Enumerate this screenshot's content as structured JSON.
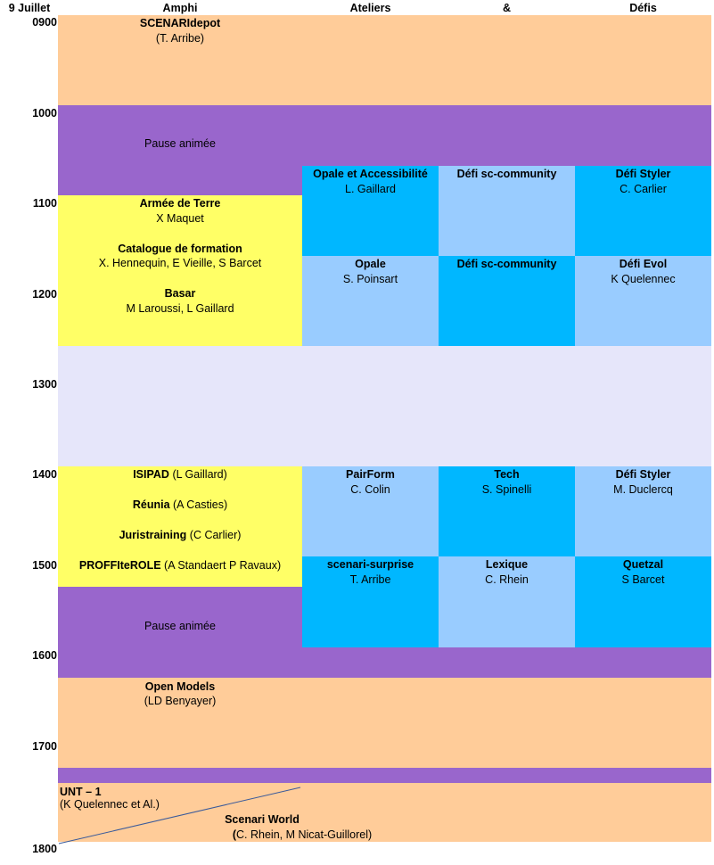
{
  "header": {
    "date": "9 Juillet",
    "col1": "Amphi",
    "col2": "Ateliers",
    "col3": "&",
    "col4": "Défis"
  },
  "times": [
    "0900",
    "1000",
    "1100",
    "1200",
    "1300",
    "1400",
    "1500",
    "1600",
    "1700",
    "1800"
  ],
  "sessions": {
    "scenaridepot": {
      "title": "SCENARIdepot",
      "speaker": "(T. Arribe)"
    },
    "pause1": "Pause animée",
    "opale_access": {
      "title": "Opale et Accessibilité",
      "speaker": "L. Gaillard"
    },
    "defi_sc1": {
      "title": "Défi sc-community"
    },
    "defi_styler1": {
      "title": "Défi Styler",
      "speaker": "C. Carlier"
    },
    "armee": {
      "title": "Armée de Terre",
      "speaker": "X Maquet"
    },
    "catalogue": {
      "title": "Catalogue de formation",
      "speaker": "X. Hennequin, E Vieille, S Barcet"
    },
    "basar": {
      "title": "Basar",
      "speaker": "M Laroussi, L Gaillard"
    },
    "opale": {
      "title": "Opale",
      "speaker": "S. Poinsart"
    },
    "defi_sc2": {
      "title": "Défi sc-community"
    },
    "defi_evol": {
      "title": "Défi Evol",
      "speaker": "K Quelennec"
    },
    "isipad": {
      "title": "ISIPAD",
      "speaker": "(L Gaillard)"
    },
    "reunia": {
      "title": "Réunia",
      "speaker": "(A Casties)"
    },
    "juristraining": {
      "title": "Juristraining",
      "speaker": "(C Carlier)"
    },
    "proffite": {
      "title": "PROFFIteROLE",
      "speaker": "(A Standaert P Ravaux)"
    },
    "pairform": {
      "title": "PairForm",
      "speaker": "C. Colin"
    },
    "tech": {
      "title": "Tech",
      "speaker": "S. Spinelli"
    },
    "defi_styler2": {
      "title": "Défi Styler",
      "speaker": "M. Duclercq"
    },
    "surprise": {
      "title": "scenari-surprise",
      "speaker": "T. Arribe"
    },
    "lexique": {
      "title": "Lexique",
      "speaker": "C. Rhein"
    },
    "quetzal": {
      "title": "Quetzal",
      "speaker": "S Barcet"
    },
    "pause2": "Pause animée",
    "openmodels": {
      "title": "Open Models",
      "speaker": "(LD Benyayer)"
    },
    "unt": {
      "title": "UNT – 1",
      "speaker": "(K Quelennec et Al.)"
    },
    "scenariworld": {
      "title": "Scenari World",
      "speaker_prefix": "(",
      "speaker": "C. Rhein, M Nicat-Guillorel)"
    }
  },
  "colors": {
    "orange": "#ffcc99",
    "purple": "#9966cc",
    "yellow": "#ffff66",
    "blue": "#00b7ff",
    "light_blue": "#99ccff",
    "lavender": "#e6e6fa"
  }
}
